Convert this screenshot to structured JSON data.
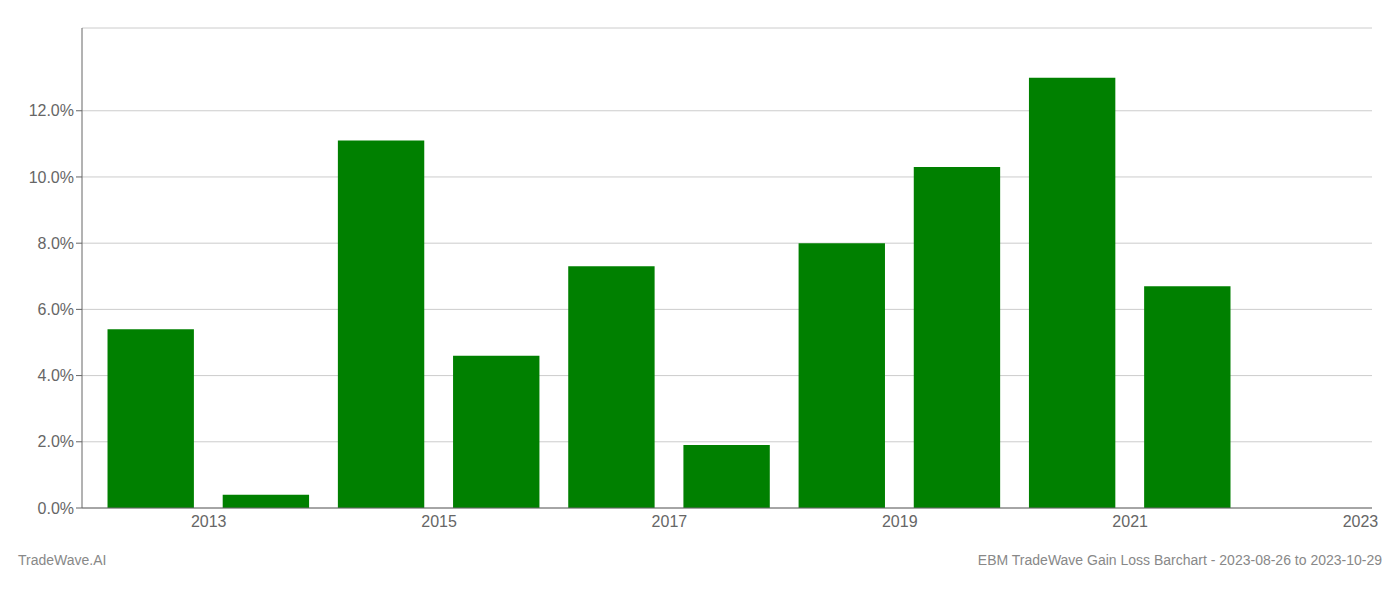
{
  "chart_data": {
    "type": "bar",
    "x": [
      2013,
      2014,
      2015,
      2016,
      2017,
      2018,
      2019,
      2020,
      2021,
      2022
    ],
    "values": [
      0.054,
      0.004,
      0.111,
      0.046,
      0.073,
      0.019,
      0.08,
      0.103,
      0.13,
      0.067
    ],
    "color": "#008000",
    "xlim": [
      2012.4,
      2023.6
    ],
    "xticks": [
      {
        "value": 2013.5,
        "label": "2013"
      },
      {
        "value": 2015.5,
        "label": "2015"
      },
      {
        "value": 2017.5,
        "label": "2017"
      },
      {
        "value": 2019.5,
        "label": "2019"
      },
      {
        "value": 2021.5,
        "label": "2021"
      },
      {
        "value": 2023.5,
        "label": "2023"
      }
    ],
    "ylim": [
      0,
      0.145
    ],
    "yticks": [
      {
        "value": 0.0,
        "label": "0.0%"
      },
      {
        "value": 0.02,
        "label": "2.0%"
      },
      {
        "value": 0.04,
        "label": "4.0%"
      },
      {
        "value": 0.06,
        "label": "6.0%"
      },
      {
        "value": 0.08,
        "label": "8.0%"
      },
      {
        "value": 0.1,
        "label": "10.0%"
      },
      {
        "value": 0.12,
        "label": "12.0%"
      }
    ],
    "grid": true,
    "annotations": [
      "TradeWave.AI",
      "EBM TradeWave Gain Loss Barchart - 2023-08-26 to 2023-10-29"
    ]
  }
}
